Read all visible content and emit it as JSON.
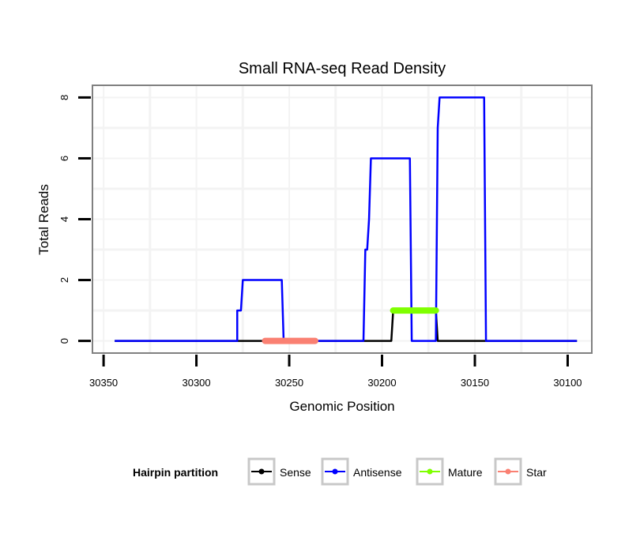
{
  "chart_data": {
    "type": "line",
    "title": "Small RNA-seq Read Density",
    "xlabel": "Genomic Position",
    "ylabel": "Total Reads",
    "xlim": [
      30356,
      30087
    ],
    "x_reversed": true,
    "ylim": [
      -0.4,
      8.4
    ],
    "xticks": [
      30350,
      30300,
      30250,
      30200,
      30150,
      30100
    ],
    "yticks": [
      0,
      2,
      4,
      6,
      8
    ],
    "grid": true,
    "legend": {
      "title": "Hairpin partition",
      "placement": "bottom"
    },
    "series": [
      {
        "name": "Sense",
        "color": "#000000",
        "x": [
          30344,
          30195,
          30194,
          30171,
          30170,
          30095
        ],
        "y": [
          0,
          0,
          1,
          1,
          0,
          0
        ]
      },
      {
        "name": "Antisense",
        "color": "#0000FF",
        "x": [
          30344,
          30278,
          30278,
          30276,
          30275,
          30254,
          30253,
          30210,
          30209,
          30208,
          30207,
          30206,
          30185,
          30184,
          30171,
          30170,
          30169,
          30145,
          30144,
          30095
        ],
        "y": [
          0,
          0,
          1,
          1,
          2,
          2,
          0,
          0,
          3,
          3,
          4,
          6,
          6,
          0,
          0,
          7,
          8,
          8,
          0,
          0
        ]
      },
      {
        "name": "Mature",
        "color": "#7FFF00",
        "x": [
          30194,
          30171
        ],
        "y": [
          1,
          1
        ]
      },
      {
        "name": "Star",
        "color": "#FA8072",
        "x": [
          30263,
          30236
        ],
        "y": [
          0,
          0
        ]
      }
    ]
  }
}
